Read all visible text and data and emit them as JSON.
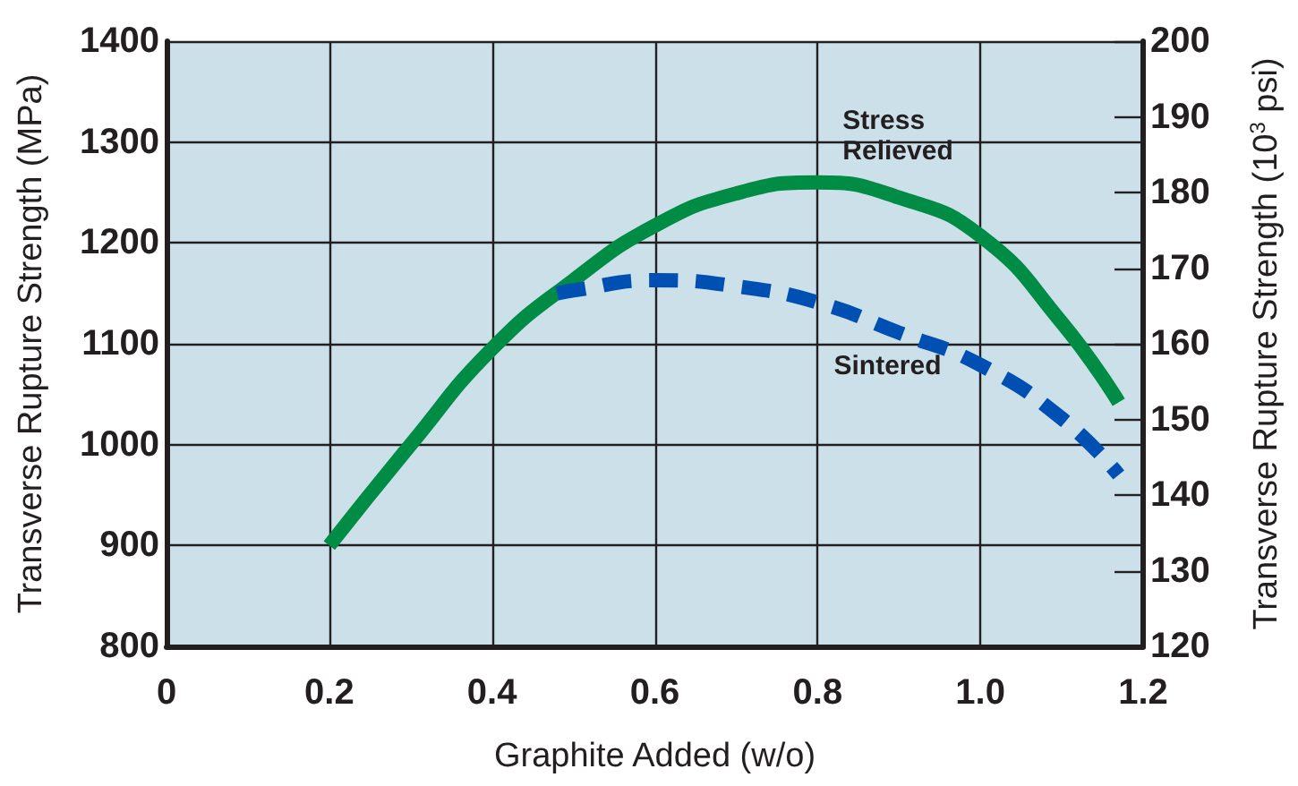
{
  "chart_data": {
    "type": "line",
    "xlabel": "Graphite Added (w/o)",
    "ylabel": "Transverse Rupture Strength (MPa)",
    "y2label": "Transverse Rupture Strength (10$^{3}$ psi)",
    "xlim": [
      0,
      1.2
    ],
    "xticks": [
      0,
      0.2,
      0.4,
      0.6,
      0.8,
      {
        "value": 1,
        "label": "1.0"
      },
      1.2
    ],
    "ylim": [
      800,
      1400
    ],
    "yticks": [
      800,
      900,
      1000,
      1100,
      1200,
      1300,
      1400
    ],
    "y2lim": [
      120,
      200
    ],
    "y2ticks": [
      120,
      130,
      140,
      150,
      160,
      170,
      180,
      190,
      200
    ],
    "grid": true,
    "marker": "none",
    "series": [
      {
        "name": "Stress Relieved",
        "color": "#008c45",
        "line_style": "solid",
        "x": [
          0.2,
          0.3,
          0.4,
          0.5,
          0.6,
          0.7,
          0.8,
          0.9,
          1.0,
          1.1,
          1.17
        ],
        "values": [
          900,
          1000,
          1095,
          1163,
          1217,
          1249,
          1260,
          1245,
          1207,
          1121,
          1042
        ]
      },
      {
        "name": "Sintered",
        "color": "#0050b4",
        "line_style": "dashed",
        "x": [
          0.48,
          0.5,
          0.6,
          0.7,
          0.8,
          0.9,
          1.0,
          1.1,
          1.17
        ],
        "values": [
          1150,
          1153,
          1163,
          1157,
          1141,
          1111,
          1079,
          1026,
          970
        ]
      }
    ]
  }
}
